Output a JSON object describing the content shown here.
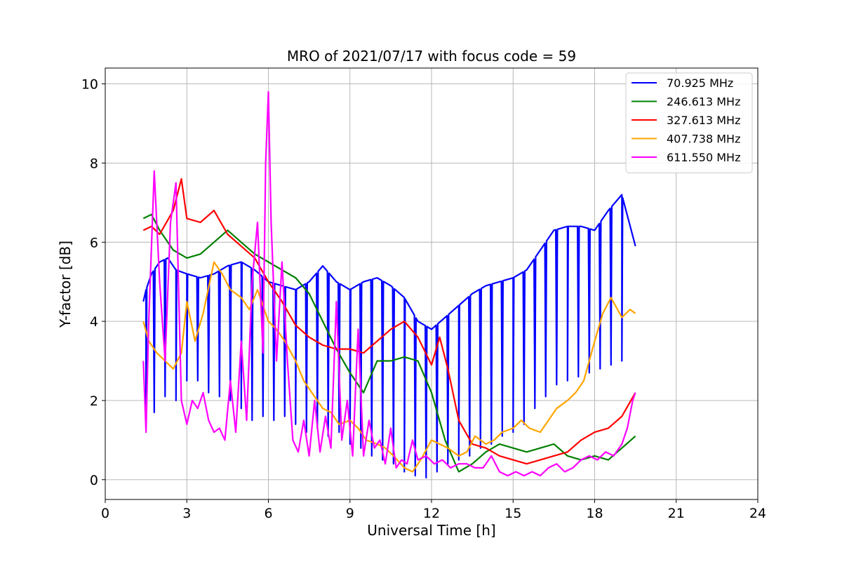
{
  "chart_data": {
    "type": "line",
    "title": "MRO of 2021/07/17 with focus code = 59",
    "xlabel": "Universal Time [h]",
    "ylabel": "Y-factor [dB]",
    "xlim": [
      0,
      24
    ],
    "ylim": [
      -0.5,
      10.4
    ],
    "xticks": [
      0,
      3,
      6,
      9,
      12,
      15,
      18,
      21,
      24
    ],
    "yticks": [
      0,
      2,
      4,
      6,
      8,
      10
    ],
    "grid": true,
    "legend_position": "top-right",
    "series": [
      {
        "name": "70.925 MHz",
        "color": "#0000ff",
        "x": [
          1.4,
          1.5,
          1.7,
          2.0,
          2.3,
          2.6,
          3.0,
          3.5,
          4.0,
          4.5,
          5.0,
          5.5,
          6.0,
          6.5,
          7.0,
          7.5,
          8.0,
          8.5,
          9.0,
          9.5,
          10.0,
          10.5,
          11.0,
          11.5,
          12.0,
          12.5,
          13.0,
          13.5,
          14.0,
          14.5,
          15.0,
          15.5,
          16.0,
          16.5,
          17.0,
          17.5,
          18.0,
          18.5,
          19.0,
          19.5
        ],
        "y": [
          4.5,
          4.8,
          5.2,
          5.5,
          5.6,
          5.3,
          5.2,
          5.1,
          5.2,
          5.4,
          5.5,
          5.3,
          5.0,
          4.9,
          4.8,
          5.0,
          5.4,
          5.0,
          4.8,
          5.0,
          5.1,
          4.9,
          4.6,
          4.0,
          3.8,
          4.1,
          4.4,
          4.7,
          4.9,
          5.0,
          5.1,
          5.3,
          5.8,
          6.3,
          6.4,
          6.4,
          6.3,
          6.8,
          7.2,
          5.9
        ],
        "dip_x": [
          1.5,
          1.8,
          2.2,
          2.6,
          3.0,
          3.4,
          3.8,
          4.2,
          4.6,
          5.0,
          5.4,
          5.8,
          6.2,
          6.6,
          7.0,
          7.4,
          7.8,
          8.2,
          8.6,
          9.0,
          9.4,
          9.8,
          10.2,
          10.6,
          11.0,
          11.4,
          11.8,
          12.2,
          12.6,
          13.0,
          13.4,
          13.8,
          14.2,
          14.6,
          15.0,
          15.4,
          15.8,
          16.2,
          16.6,
          17.0,
          17.4,
          17.8,
          18.2,
          18.6,
          19.0
        ],
        "dip_y": [
          1.5,
          1.7,
          2.1,
          2.0,
          2.5,
          2.5,
          2.2,
          2.1,
          2.0,
          1.8,
          1.5,
          1.6,
          1.5,
          1.6,
          1.4,
          1.2,
          1.3,
          1.1,
          1.2,
          0.9,
          0.8,
          0.6,
          0.5,
          0.4,
          0.2,
          0.1,
          0.05,
          0.2,
          0.4,
          0.5,
          0.6,
          0.8,
          0.9,
          1.1,
          1.2,
          1.4,
          1.8,
          2.1,
          2.4,
          2.5,
          2.6,
          2.7,
          2.8,
          2.9,
          3.0
        ]
      },
      {
        "name": "246.613 MHz",
        "color": "#008000",
        "x": [
          1.4,
          1.7,
          2.0,
          2.5,
          3.0,
          3.5,
          4.0,
          4.5,
          5.0,
          5.5,
          6.0,
          6.5,
          7.0,
          7.5,
          8.0,
          8.5,
          9.0,
          9.5,
          10.0,
          10.5,
          11.0,
          11.5,
          12.0,
          12.5,
          13.0,
          13.5,
          14.0,
          14.5,
          15.0,
          15.5,
          16.0,
          16.5,
          17.0,
          17.5,
          18.0,
          18.5,
          19.0,
          19.5
        ],
        "y": [
          6.6,
          6.7,
          6.3,
          5.8,
          5.6,
          5.7,
          6.0,
          6.3,
          6.0,
          5.7,
          5.5,
          5.3,
          5.1,
          4.7,
          4.0,
          3.3,
          2.7,
          2.2,
          3.0,
          3.0,
          3.1,
          3.0,
          2.2,
          1.0,
          0.2,
          0.4,
          0.7,
          0.9,
          0.8,
          0.7,
          0.8,
          0.9,
          0.6,
          0.5,
          0.6,
          0.5,
          0.8,
          1.1
        ]
      },
      {
        "name": "327.613 MHz",
        "color": "#ff0000",
        "x": [
          1.4,
          1.7,
          2.0,
          2.5,
          2.8,
          3.0,
          3.5,
          4.0,
          4.5,
          5.0,
          5.5,
          6.0,
          6.5,
          7.0,
          7.5,
          8.0,
          8.5,
          9.0,
          9.5,
          10.0,
          10.5,
          11.0,
          11.5,
          12.0,
          12.3,
          12.6,
          13.0,
          13.5,
          14.0,
          14.5,
          15.0,
          15.5,
          16.0,
          16.5,
          17.0,
          17.5,
          18.0,
          18.5,
          19.0,
          19.5
        ],
        "y": [
          6.3,
          6.4,
          6.2,
          6.8,
          7.6,
          6.6,
          6.5,
          6.8,
          6.2,
          5.9,
          5.6,
          5.0,
          4.5,
          3.9,
          3.6,
          3.4,
          3.3,
          3.3,
          3.2,
          3.5,
          3.8,
          4.0,
          3.6,
          2.9,
          3.6,
          2.8,
          1.5,
          0.9,
          0.8,
          0.6,
          0.5,
          0.4,
          0.5,
          0.6,
          0.7,
          1.0,
          1.2,
          1.3,
          1.6,
          2.2
        ]
      },
      {
        "name": "407.738 MHz",
        "color": "#ffa500",
        "x": [
          1.4,
          1.6,
          1.9,
          2.2,
          2.5,
          2.8,
          3.0,
          3.3,
          3.6,
          4.0,
          4.3,
          4.6,
          5.0,
          5.3,
          5.6,
          6.0,
          6.3,
          6.6,
          7.0,
          7.3,
          7.6,
          8.0,
          8.3,
          8.6,
          9.0,
          9.3,
          9.6,
          10.0,
          10.3,
          10.6,
          11.0,
          11.3,
          11.6,
          12.0,
          12.3,
          12.6,
          13.0,
          13.3,
          13.6,
          14.0,
          14.3,
          14.6,
          15.0,
          15.3,
          15.6,
          16.0,
          16.3,
          16.6,
          17.0,
          17.3,
          17.6,
          18.0,
          18.3,
          18.6,
          19.0,
          19.3,
          19.5
        ],
        "y": [
          4.0,
          3.5,
          3.2,
          3.0,
          2.8,
          3.2,
          4.5,
          3.5,
          4.2,
          5.5,
          5.2,
          4.8,
          4.6,
          4.3,
          4.8,
          4.0,
          3.8,
          3.5,
          3.0,
          2.5,
          2.2,
          1.8,
          1.7,
          1.4,
          1.5,
          1.3,
          1.0,
          0.9,
          0.8,
          0.6,
          0.3,
          0.2,
          0.5,
          1.0,
          0.9,
          0.8,
          0.6,
          0.7,
          1.1,
          0.9,
          1.0,
          1.2,
          1.3,
          1.5,
          1.3,
          1.2,
          1.5,
          1.8,
          2.0,
          2.2,
          2.5,
          3.5,
          4.2,
          4.6,
          4.1,
          4.3,
          4.2
        ]
      },
      {
        "name": "611.550 MHz",
        "color": "#ff00ff",
        "x": [
          1.4,
          1.5,
          1.6,
          1.8,
          2.0,
          2.2,
          2.4,
          2.6,
          2.8,
          3.0,
          3.2,
          3.4,
          3.6,
          3.8,
          4.0,
          4.2,
          4.4,
          4.6,
          4.8,
          5.0,
          5.2,
          5.4,
          5.6,
          5.8,
          5.9,
          6.0,
          6.1,
          6.3,
          6.5,
          6.7,
          6.9,
          7.1,
          7.3,
          7.5,
          7.7,
          7.9,
          8.1,
          8.3,
          8.5,
          8.7,
          8.9,
          9.1,
          9.3,
          9.5,
          9.7,
          9.9,
          10.1,
          10.3,
          10.5,
          10.7,
          10.9,
          11.1,
          11.3,
          11.5,
          11.8,
          12.1,
          12.4,
          12.7,
          13.0,
          13.3,
          13.6,
          13.9,
          14.2,
          14.5,
          14.8,
          15.1,
          15.4,
          15.7,
          16.0,
          16.3,
          16.6,
          16.9,
          17.2,
          17.5,
          17.8,
          18.1,
          18.4,
          18.7,
          19.0,
          19.2,
          19.4,
          19.5
        ],
        "y": [
          3.0,
          1.2,
          4.0,
          7.8,
          5.0,
          3.0,
          6.5,
          7.5,
          2.0,
          1.4,
          2.0,
          1.8,
          2.2,
          1.5,
          1.2,
          1.3,
          1.0,
          2.5,
          1.2,
          3.5,
          1.5,
          5.0,
          6.5,
          3.2,
          8.0,
          9.8,
          6.5,
          3.0,
          5.5,
          3.0,
          1.0,
          0.7,
          1.5,
          0.6,
          2.0,
          0.7,
          1.6,
          0.8,
          4.5,
          1.0,
          2.0,
          0.6,
          3.8,
          0.6,
          1.5,
          0.8,
          1.0,
          0.4,
          1.3,
          0.3,
          0.5,
          0.4,
          1.0,
          0.5,
          0.6,
          0.4,
          0.5,
          0.3,
          0.4,
          0.4,
          0.3,
          0.3,
          0.6,
          0.2,
          0.1,
          0.2,
          0.1,
          0.2,
          0.1,
          0.3,
          0.4,
          0.2,
          0.3,
          0.5,
          0.6,
          0.5,
          0.7,
          0.6,
          0.9,
          1.3,
          2.0,
          2.2
        ]
      }
    ]
  }
}
